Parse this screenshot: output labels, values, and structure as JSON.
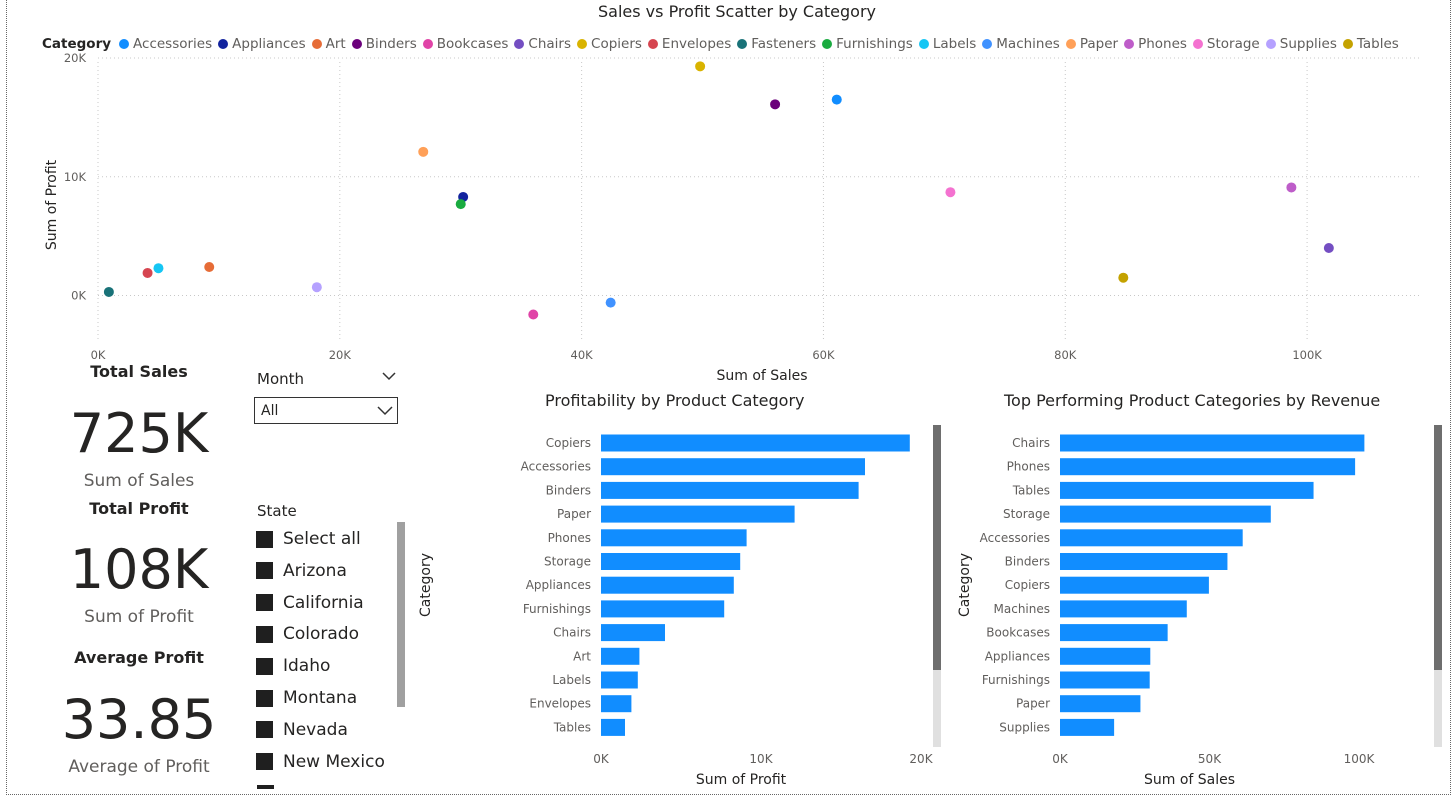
{
  "colors": {
    "bar": "#118DFF",
    "grid": "#c8c8c8",
    "text": "#605e5c"
  },
  "scatter": {
    "title": "Sales vs Profit Scatter by Category",
    "legend_title": "Category",
    "legend": [
      {
        "name": "Accessories",
        "color": "#118DFF"
      },
      {
        "name": "Appliances",
        "color": "#12239E"
      },
      {
        "name": "Art",
        "color": "#E66C37"
      },
      {
        "name": "Binders",
        "color": "#6B007B"
      },
      {
        "name": "Bookcases",
        "color": "#E044A7"
      },
      {
        "name": "Chairs",
        "color": "#744EC2"
      },
      {
        "name": "Copiers",
        "color": "#D9B300"
      },
      {
        "name": "Envelopes",
        "color": "#D64550"
      },
      {
        "name": "Fasteners",
        "color": "#197278"
      },
      {
        "name": "Furnishings",
        "color": "#1AAB40"
      },
      {
        "name": "Labels",
        "color": "#15C6F4"
      },
      {
        "name": "Machines",
        "color": "#4092FF"
      },
      {
        "name": "Paper",
        "color": "#FFA058"
      },
      {
        "name": "Phones",
        "color": "#BE5DC9"
      },
      {
        "name": "Storage",
        "color": "#F472D0"
      },
      {
        "name": "Supplies",
        "color": "#B5A1FF"
      },
      {
        "name": "Tables",
        "color": "#C4A200"
      }
    ],
    "xlabel": "Sum of Sales",
    "ylabel": "Sum of Profit"
  },
  "chart_data": [
    {
      "type": "scatter",
      "title": "Sales vs Profit Scatter by Category",
      "xlabel": "Sum of Sales",
      "ylabel": "Sum of Profit",
      "xlim": [
        0,
        110000
      ],
      "ylim": [
        -4000,
        20000
      ],
      "xticks": [
        0,
        20000,
        40000,
        60000,
        80000,
        100000
      ],
      "xtick_labels": [
        "0K",
        "20K",
        "40K",
        "60K",
        "80K",
        "100K"
      ],
      "yticks": [
        0,
        10000,
        20000
      ],
      "ytick_labels": [
        "0K",
        "10K",
        "20K"
      ],
      "grid": true,
      "legend_position": "top",
      "points": [
        {
          "category": "Accessories",
          "x": 61100,
          "y": 16500
        },
        {
          "category": "Appliances",
          "x": 30200,
          "y": 8300
        },
        {
          "category": "Art",
          "x": 9200,
          "y": 2400
        },
        {
          "category": "Binders",
          "x": 56000,
          "y": 16100
        },
        {
          "category": "Bookcases",
          "x": 36000,
          "y": -1600
        },
        {
          "category": "Chairs",
          "x": 101800,
          "y": 4000
        },
        {
          "category": "Copiers",
          "x": 49800,
          "y": 19300
        },
        {
          "category": "Envelopes",
          "x": 4100,
          "y": 1900
        },
        {
          "category": "Fasteners",
          "x": 900,
          "y": 300
        },
        {
          "category": "Furnishings",
          "x": 30000,
          "y": 7700
        },
        {
          "category": "Labels",
          "x": 5000,
          "y": 2300
        },
        {
          "category": "Machines",
          "x": 42400,
          "y": -600
        },
        {
          "category": "Paper",
          "x": 26900,
          "y": 12100
        },
        {
          "category": "Phones",
          "x": 98700,
          "y": 9100
        },
        {
          "category": "Storage",
          "x": 70500,
          "y": 8700
        },
        {
          "category": "Supplies",
          "x": 18100,
          "y": 700
        },
        {
          "category": "Tables",
          "x": 84800,
          "y": 1500
        }
      ]
    },
    {
      "type": "bar",
      "orientation": "horizontal",
      "title": "Profitability by Product Category",
      "xlabel": "Sum of Profit",
      "ylabel": "Category",
      "xlim": [
        0,
        20000
      ],
      "xticks": [
        0,
        10000,
        20000
      ],
      "xtick_labels": [
        "0K",
        "10K",
        "20K"
      ],
      "categories": [
        "Copiers",
        "Accessories",
        "Binders",
        "Paper",
        "Phones",
        "Storage",
        "Appliances",
        "Furnishings",
        "Chairs",
        "Art",
        "Labels",
        "Envelopes",
        "Tables"
      ],
      "values": [
        19300,
        16500,
        16100,
        12100,
        9100,
        8700,
        8300,
        7700,
        4000,
        2400,
        2300,
        1900,
        1500
      ]
    },
    {
      "type": "bar",
      "orientation": "horizontal",
      "title": "Top Performing Product Categories by Revenue",
      "xlabel": "Sum of Sales",
      "ylabel": "Category",
      "xlim": [
        0,
        100000
      ],
      "xticks": [
        0,
        50000,
        100000
      ],
      "xtick_labels": [
        "0K",
        "50K",
        "100K"
      ],
      "categories": [
        "Chairs",
        "Phones",
        "Tables",
        "Storage",
        "Accessories",
        "Binders",
        "Copiers",
        "Machines",
        "Bookcases",
        "Appliances",
        "Furnishings",
        "Paper",
        "Supplies"
      ],
      "values": [
        101800,
        98700,
        84800,
        70500,
        61100,
        56000,
        49800,
        42400,
        36000,
        30200,
        30000,
        26900,
        18100
      ]
    }
  ],
  "cards": [
    {
      "title": "Total Sales",
      "value": "725K",
      "label": "Sum of Sales"
    },
    {
      "title": "Total Profit",
      "value": "108K",
      "label": "Sum of Profit"
    },
    {
      "title": "Average Profit",
      "value": "33.85",
      "label": "Average of Profit"
    }
  ],
  "month_slicer": {
    "title": "Month",
    "selected": "All"
  },
  "state_slicer": {
    "title": "State",
    "items": [
      "Select all",
      "Arizona",
      "California",
      "Colorado",
      "Idaho",
      "Montana",
      "Nevada",
      "New Mexico"
    ]
  }
}
